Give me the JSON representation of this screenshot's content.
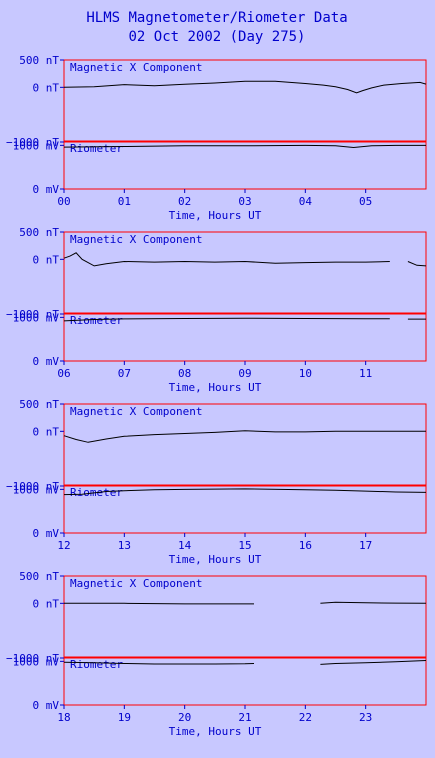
{
  "title": "HLMS Magnetometer/Riometer Data",
  "subtitle": "02 Oct 2002 (Day 275)",
  "chart_data": {
    "type": "line",
    "panel_labels": {
      "magnetometer": "Magnetic X Component",
      "riometer": "Riometer"
    },
    "magnetometer_ticks": [
      "500 nT",
      "0 nT",
      "−1000 nT"
    ],
    "riometer_ticks": [
      "1000 mV",
      "0 mV"
    ],
    "magnetometer_ylim": [
      -1000,
      500
    ],
    "riometer_ylim": [
      0,
      1100
    ],
    "xlabel": "Time, Hours UT",
    "rows": [
      {
        "hour_labels": [
          "00",
          "01",
          "02",
          "03",
          "04",
          "05"
        ],
        "magnetometer": {
          "name": "Magnetic X Component",
          "segments": [
            [
              [
                0.0,
                0
              ],
              [
                0.5,
                10
              ],
              [
                1.0,
                50
              ],
              [
                1.5,
                30
              ],
              [
                2.0,
                55
              ],
              [
                2.5,
                80
              ],
              [
                3.0,
                110
              ],
              [
                3.5,
                110
              ],
              [
                4.0,
                70
              ],
              [
                4.3,
                40
              ],
              [
                4.5,
                10
              ],
              [
                4.7,
                -40
              ],
              [
                4.85,
                -100
              ],
              [
                4.95,
                -60
              ],
              [
                5.1,
                -10
              ],
              [
                5.3,
                40
              ],
              [
                5.6,
                70
              ],
              [
                5.9,
                90
              ],
              [
                6.0,
                60
              ]
            ]
          ]
        },
        "riometer": {
          "name": "Riometer",
          "segments": [
            [
              [
                0.0,
                960
              ],
              [
                1.0,
                975
              ],
              [
                2.0,
                990
              ],
              [
                3.0,
                990
              ],
              [
                4.0,
                1000
              ],
              [
                4.5,
                990
              ],
              [
                4.8,
                950
              ],
              [
                5.1,
                990
              ],
              [
                5.5,
                1000
              ],
              [
                6.0,
                1000
              ]
            ]
          ]
        }
      },
      {
        "hour_labels": [
          "06",
          "07",
          "08",
          "09",
          "10",
          "11"
        ],
        "magnetometer": {
          "name": "Magnetic X Component",
          "segments": [
            [
              [
                6.0,
                20
              ],
              [
                6.1,
                60
              ],
              [
                6.2,
                120
              ],
              [
                6.3,
                0
              ],
              [
                6.5,
                -120
              ],
              [
                6.7,
                -80
              ],
              [
                7.0,
                -40
              ],
              [
                7.5,
                -50
              ],
              [
                8.0,
                -40
              ],
              [
                8.5,
                -50
              ],
              [
                9.0,
                -40
              ],
              [
                9.5,
                -70
              ],
              [
                10.0,
                -60
              ],
              [
                10.5,
                -50
              ],
              [
                11.0,
                -50
              ],
              [
                11.4,
                -40
              ]
            ],
            [
              [
                11.7,
                -40
              ],
              [
                11.85,
                -110
              ],
              [
                12.0,
                -120
              ]
            ]
          ]
        },
        "riometer": {
          "name": "Riometer",
          "segments": [
            [
              [
                6.0,
                920
              ],
              [
                6.5,
                950
              ],
              [
                7.0,
                965
              ],
              [
                8.0,
                975
              ],
              [
                9.0,
                980
              ],
              [
                10.0,
                975
              ],
              [
                11.0,
                970
              ],
              [
                11.4,
                970
              ]
            ],
            [
              [
                11.7,
                960
              ],
              [
                12.0,
                960
              ]
            ]
          ]
        }
      },
      {
        "hour_labels": [
          "12",
          "13",
          "14",
          "15",
          "16",
          "17"
        ],
        "magnetometer": {
          "name": "Magnetic X Component",
          "segments": [
            [
              [
                12.0,
                -80
              ],
              [
                12.2,
                -150
              ],
              [
                12.4,
                -200
              ],
              [
                12.7,
                -140
              ],
              [
                13.0,
                -90
              ],
              [
                13.5,
                -60
              ],
              [
                14.0,
                -40
              ],
              [
                14.5,
                -20
              ],
              [
                15.0,
                10
              ],
              [
                15.5,
                -10
              ],
              [
                16.0,
                -10
              ],
              [
                16.5,
                0
              ],
              [
                17.0,
                0
              ],
              [
                17.5,
                0
              ],
              [
                18.0,
                0
              ]
            ]
          ]
        },
        "riometer": {
          "name": "Riometer",
          "segments": [
            [
              [
                12.0,
                880
              ],
              [
                12.3,
                890
              ],
              [
                12.7,
                950
              ],
              [
                13.0,
                970
              ],
              [
                13.5,
                990
              ],
              [
                14.0,
                1000
              ],
              [
                15.0,
                1010
              ],
              [
                16.0,
                990
              ],
              [
                16.5,
                980
              ],
              [
                17.0,
                960
              ],
              [
                17.5,
                940
              ],
              [
                18.0,
                930
              ]
            ]
          ]
        }
      },
      {
        "hour_labels": [
          "18",
          "19",
          "20",
          "21",
          "22",
          "23"
        ],
        "magnetometer": {
          "name": "Magnetic X Component",
          "segments": [
            [
              [
                18.0,
                0
              ],
              [
                19.0,
                0
              ],
              [
                20.0,
                -10
              ],
              [
                21.0,
                -10
              ],
              [
                21.15,
                -10
              ]
            ],
            [
              [
                22.25,
                0
              ],
              [
                22.5,
                20
              ],
              [
                23.0,
                10
              ],
              [
                23.5,
                5
              ],
              [
                24.0,
                0
              ]
            ]
          ]
        },
        "riometer": {
          "name": "Riometer",
          "segments": [
            [
              [
                18.0,
                980
              ],
              [
                18.5,
                970
              ],
              [
                19.0,
                950
              ],
              [
                19.5,
                940
              ],
              [
                20.0,
                940
              ],
              [
                20.5,
                940
              ],
              [
                21.0,
                945
              ],
              [
                21.15,
                950
              ]
            ],
            [
              [
                22.25,
                930
              ],
              [
                22.5,
                950
              ],
              [
                23.0,
                970
              ],
              [
                23.5,
                990
              ],
              [
                24.0,
                1020
              ]
            ]
          ]
        }
      }
    ]
  }
}
